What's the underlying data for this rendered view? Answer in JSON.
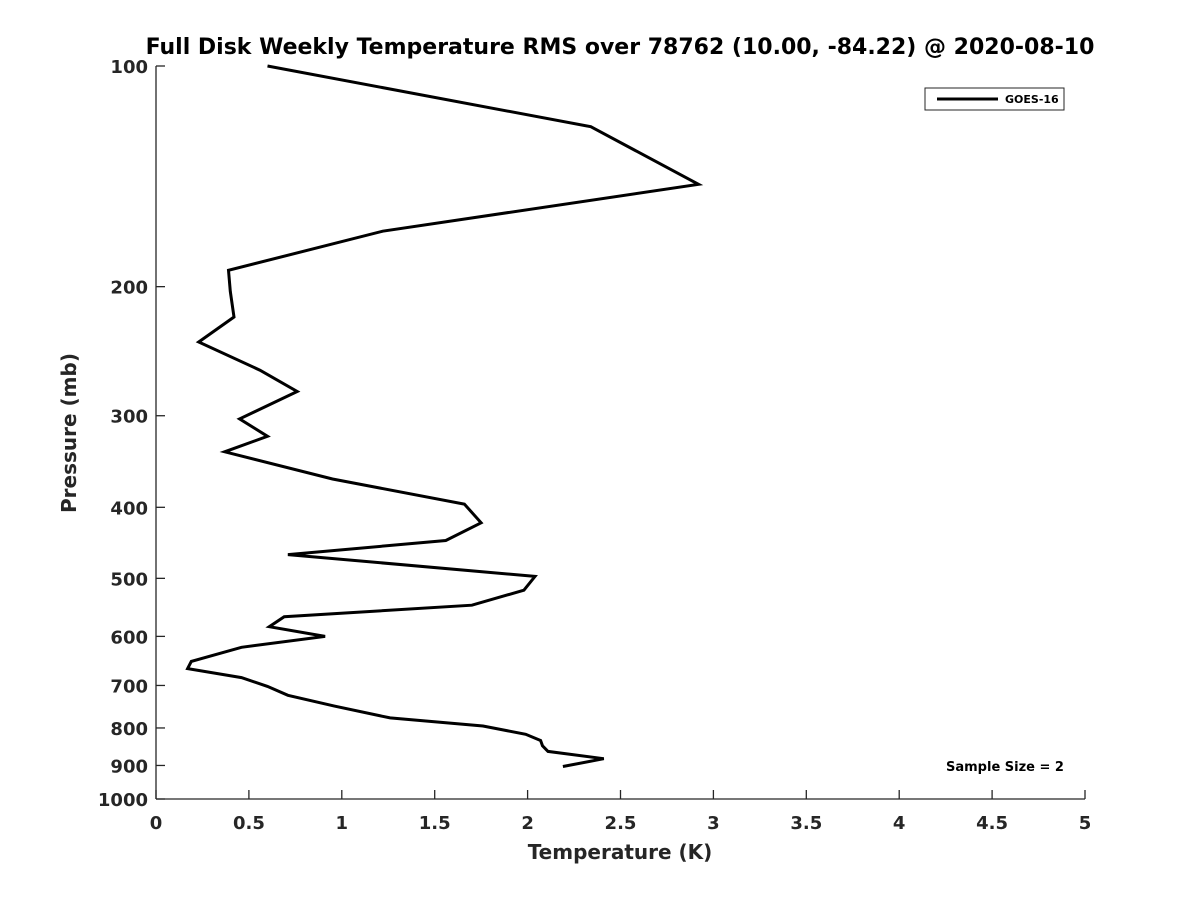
{
  "chart_data": {
    "type": "line",
    "title": "Full Disk Weekly Temperature RMS over 78762 (10.00, -84.22) @ 2020-08-10",
    "xlabel": "Temperature (K)",
    "ylabel": "Pressure (mb)",
    "xlim": [
      0,
      5
    ],
    "ylim": [
      100,
      1000
    ],
    "y_scale": "log",
    "y_reversed": true,
    "x_ticks": [
      0,
      0.5,
      1,
      1.5,
      2,
      2.5,
      3,
      3.5,
      4,
      4.5,
      5
    ],
    "x_tick_labels": [
      "0",
      "0.5",
      "1",
      "1.5",
      "2",
      "2.5",
      "3",
      "3.5",
      "4",
      "4.5",
      "5"
    ],
    "y_ticks": [
      100,
      200,
      300,
      400,
      500,
      600,
      700,
      800,
      900,
      1000
    ],
    "y_tick_labels": [
      "100",
      "200",
      "300",
      "400",
      "500",
      "600",
      "700",
      "800",
      "900",
      "1000"
    ],
    "grid": false,
    "legend_position": "top-right",
    "annotation": "Sample Size = 2",
    "series": [
      {
        "name": "GOES-16",
        "color": "#000000",
        "x": [
          0.6,
          2.34,
          2.92,
          1.22,
          0.39,
          0.4,
          0.42,
          0.23,
          0.56,
          0.76,
          0.45,
          0.6,
          0.37,
          0.95,
          1.66,
          1.75,
          1.56,
          0.71,
          2.04,
          1.98,
          1.7,
          0.69,
          0.61,
          0.91,
          0.46,
          0.19,
          0.17,
          0.46,
          0.6,
          0.71,
          0.96,
          1.26,
          1.76,
          1.99,
          2.07,
          2.08,
          2.11,
          2.41,
          2.19
        ],
        "y": [
          100,
          121,
          145,
          168,
          190,
          203,
          220,
          238,
          260,
          278,
          303,
          320,
          336,
          366,
          396,
          420,
          444,
          464,
          497,
          519,
          544,
          564,
          582,
          600,
          621,
          649,
          664,
          683,
          702,
          722,
          747,
          775,
          795,
          816,
          832,
          846,
          861,
          881,
          903
        ]
      }
    ]
  }
}
